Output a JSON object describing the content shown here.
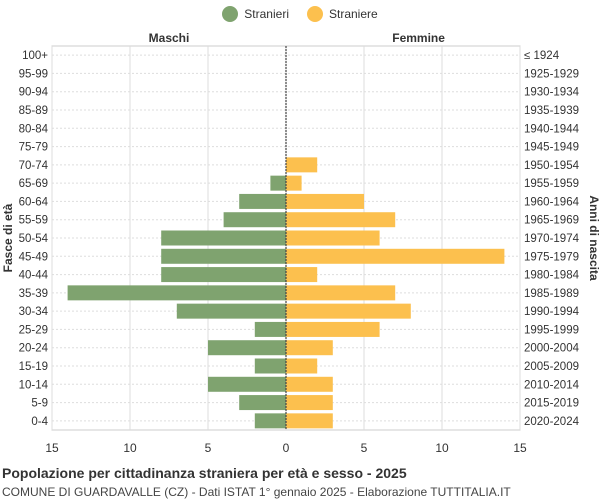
{
  "chart_data": {
    "type": "bar",
    "orientation": "horizontal-population-pyramid",
    "legend": {
      "placement": "top-center",
      "entries": [
        {
          "name": "Stranieri",
          "color": "#7fa36f"
        },
        {
          "name": "Straniere",
          "color": "#fcc04e"
        }
      ]
    },
    "left_header": "Maschi",
    "right_header": "Femmine",
    "ylabel_left": "Fasce di età",
    "ylabel_right": "Anni di nascita",
    "xlim": [
      -15,
      15
    ],
    "x_ticks": [
      {
        "value": -15,
        "label": "15"
      },
      {
        "value": -10,
        "label": "10"
      },
      {
        "value": -5,
        "label": "5"
      },
      {
        "value": 0,
        "label": "0"
      },
      {
        "value": 5,
        "label": "5"
      },
      {
        "value": 10,
        "label": "10"
      },
      {
        "value": 15,
        "label": "15"
      }
    ],
    "grid": true,
    "categories": [
      "100+",
      "95-99",
      "90-94",
      "85-89",
      "80-84",
      "75-79",
      "70-74",
      "65-69",
      "60-64",
      "55-59",
      "50-54",
      "45-49",
      "40-44",
      "35-39",
      "30-34",
      "25-29",
      "20-24",
      "15-19",
      "10-14",
      "5-9",
      "0-4"
    ],
    "birth_years": [
      "≤ 1924",
      "1925-1929",
      "1930-1934",
      "1935-1939",
      "1940-1944",
      "1945-1949",
      "1950-1954",
      "1955-1959",
      "1960-1964",
      "1965-1969",
      "1970-1974",
      "1975-1979",
      "1980-1984",
      "1985-1989",
      "1990-1994",
      "1995-1999",
      "2000-2004",
      "2005-2009",
      "2010-2014",
      "2015-2019",
      "2020-2024"
    ],
    "series": [
      {
        "name": "Stranieri",
        "color": "#7fa36f",
        "values": [
          0,
          0,
          0,
          0,
          0,
          0,
          0,
          1,
          3,
          4,
          8,
          8,
          8,
          14,
          7,
          2,
          5,
          2,
          5,
          3,
          2
        ]
      },
      {
        "name": "Straniere",
        "color": "#fcc04e",
        "values": [
          0,
          0,
          0,
          0,
          0,
          0,
          2,
          1,
          5,
          7,
          6,
          14,
          2,
          7,
          8,
          6,
          3,
          2,
          3,
          3,
          3
        ]
      }
    ]
  },
  "footer": {
    "title": "Popolazione per cittadinanza straniera per età e sesso - 2025",
    "subtitle": "COMUNE DI GUARDAVALLE (CZ) - Dati ISTAT 1° gennaio 2025 - Elaborazione TUTTITALIA.IT"
  }
}
